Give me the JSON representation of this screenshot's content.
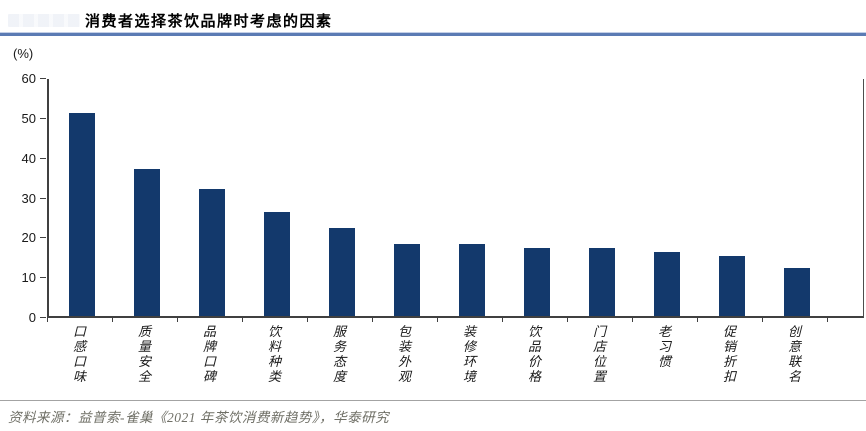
{
  "header": {
    "title": "消费者选择茶饮品牌时考虑的因素"
  },
  "chart_data": {
    "type": "bar",
    "title": "消费者选择茶饮品牌时考虑的因素",
    "unit_label": "(%)",
    "categories": [
      "口感口味",
      "质量安全",
      "品牌口碑",
      "饮料种类",
      "服务态度",
      "包装外观",
      "装修环境",
      "饮品价格",
      "门店位置",
      "老习惯",
      "促销折扣",
      "创意联名"
    ],
    "values": [
      51,
      37,
      32,
      26,
      22,
      18,
      18,
      17,
      17,
      16,
      15,
      12
    ],
    "xlabel": "",
    "ylabel": "(%)",
    "ylim": [
      0,
      60
    ],
    "y_ticks": [
      0,
      10,
      20,
      30,
      40,
      50,
      60
    ],
    "grid": false,
    "legend": "none",
    "bar_color": "#13396C",
    "axis_color": "#404040"
  },
  "footer": {
    "source": "资料来源：益普索-雀巢《2021 年茶饮消费新趋势》，华泰研究"
  },
  "colors": {
    "accent_rule": "#5b7bb4",
    "footer_rule": "#a3a3a3",
    "footer_text": "#6f6f66"
  }
}
